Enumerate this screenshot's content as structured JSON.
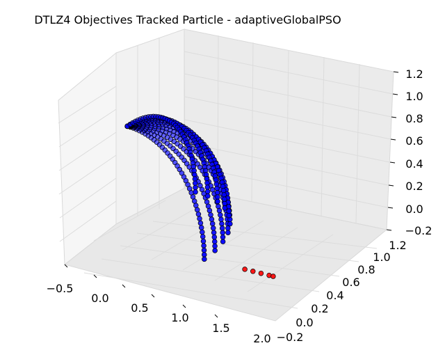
{
  "chart_data": {
    "type": "scatter3d",
    "title": "DTLZ4 Objectives Tracked Particle - adaptiveGlobalPSO",
    "xlabel": "",
    "ylabel": "",
    "zlabel": "",
    "grid": true,
    "x_ticks": [
      "−0.5",
      "0.0",
      "0.5",
      "1.0",
      "1.5",
      "2.0"
    ],
    "y_ticks": [
      "−0.2",
      "0.0",
      "0.2",
      "0.4",
      "0.6",
      "0.8",
      "1.0",
      "1.2"
    ],
    "z_ticks": [
      "−0.2",
      "0.0",
      "0.2",
      "0.4",
      "0.6",
      "0.8",
      "1.0",
      "1.2"
    ],
    "xlim": [
      -0.5,
      2.0
    ],
    "ylim": [
      -0.2,
      1.2
    ],
    "zlim": [
      -0.2,
      1.2
    ],
    "series": [
      {
        "color": "#0000ff",
        "description_points": "front surface: many points on a quarter-sphere shaped front from (0,0,1) region sweeping down to near (1,0,0)",
        "arcs": [
          {
            "theta_deg": 0
          },
          {
            "theta_deg": 10
          },
          {
            "theta_deg": 20
          },
          {
            "theta_deg": 30
          },
          {
            "theta_deg": 40
          },
          {
            "theta_deg": 50
          },
          {
            "theta_deg": 60
          },
          {
            "theta_deg": 70
          },
          {
            "theta_deg": 80
          },
          {
            "theta_deg": 90
          }
        ]
      },
      {
        "color": "#ff0000",
        "points": [
          [
            1.5,
            0.0,
            0.0
          ],
          [
            1.6,
            0.0,
            0.0
          ],
          [
            1.7,
            0.0,
            0.0
          ],
          [
            1.8,
            0.0,
            0.0
          ],
          [
            1.85,
            0.0,
            0.0
          ]
        ]
      }
    ]
  }
}
